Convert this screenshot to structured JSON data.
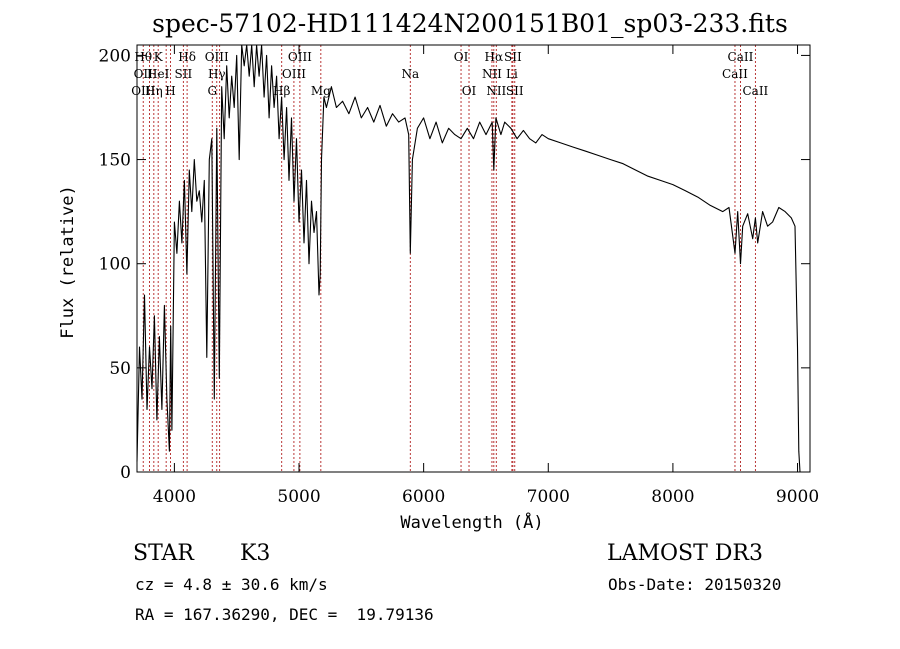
{
  "chart_data": {
    "type": "line",
    "title": "spec-57102-HD111424N200151B01_sp03-233.fits",
    "xlabel": "Wavelength (Å)",
    "ylabel": "Flux (relative)",
    "xlim": [
      3700,
      9100
    ],
    "ylim": [
      0,
      205
    ],
    "x_ticks": [
      4000,
      5000,
      6000,
      7000,
      8000,
      9000
    ],
    "y_ticks": [
      0,
      50,
      100,
      150,
      200
    ],
    "grid": false,
    "line_color": "#000000",
    "series": [
      {
        "x": [
          3700,
          3720,
          3740,
          3760,
          3780,
          3800,
          3820,
          3840,
          3860,
          3880,
          3900,
          3920,
          3940,
          3960,
          3970,
          3980,
          4000,
          4020,
          4040,
          4060,
          4080,
          4100,
          4120,
          4140,
          4160,
          4180,
          4200,
          4220,
          4240,
          4260,
          4280,
          4300,
          4320,
          4340,
          4360,
          4380,
          4400,
          4420,
          4440,
          4460,
          4480,
          4500,
          4520,
          4540,
          4560,
          4580,
          4600,
          4620,
          4640,
          4660,
          4680,
          4700,
          4720,
          4740,
          4760,
          4780,
          4800,
          4820,
          4840,
          4860,
          4880,
          4900,
          4920,
          4940,
          4960,
          4980,
          5000,
          5020,
          5040,
          5060,
          5080,
          5100,
          5120,
          5140,
          5160,
          5170,
          5180,
          5200,
          5220,
          5260,
          5300,
          5350,
          5400,
          5450,
          5500,
          5550,
          5600,
          5650,
          5700,
          5750,
          5800,
          5850,
          5880,
          5893,
          5910,
          5950,
          6000,
          6050,
          6100,
          6150,
          6200,
          6250,
          6300,
          6350,
          6400,
          6450,
          6500,
          6550,
          6563,
          6580,
          6620,
          6650,
          6700,
          6750,
          6800,
          6850,
          6900,
          6950,
          7000,
          7100,
          7200,
          7300,
          7400,
          7500,
          7600,
          7700,
          7800,
          7900,
          8000,
          8100,
          8200,
          8300,
          8400,
          8450,
          8498,
          8520,
          8542,
          8560,
          8600,
          8640,
          8662,
          8680,
          8720,
          8760,
          8800,
          8850,
          8900,
          8950,
          8980,
          9000,
          9010,
          9020
        ],
        "y": [
          5,
          60,
          35,
          85,
          30,
          60,
          40,
          75,
          25,
          65,
          30,
          80,
          35,
          10,
          70,
          20,
          120,
          105,
          130,
          110,
          140,
          95,
          145,
          125,
          150,
          130,
          135,
          120,
          140,
          55,
          150,
          160,
          35,
          165,
          45,
          185,
          160,
          195,
          170,
          190,
          175,
          200,
          150,
          205,
          195,
          210,
          190,
          205,
          185,
          210,
          190,
          205,
          180,
          200,
          170,
          195,
          175,
          190,
          160,
          180,
          150,
          175,
          140,
          170,
          130,
          160,
          120,
          145,
          110,
          140,
          100,
          130,
          115,
          125,
          85,
          95,
          150,
          180,
          175,
          185,
          175,
          178,
          172,
          180,
          170,
          175,
          168,
          176,
          166,
          172,
          168,
          170,
          162,
          105,
          150,
          165,
          170,
          160,
          168,
          158,
          165,
          162,
          160,
          165,
          160,
          168,
          162,
          168,
          145,
          170,
          162,
          168,
          165,
          160,
          164,
          160,
          158,
          162,
          160,
          158,
          156,
          154,
          152,
          150,
          148,
          145,
          142,
          140,
          138,
          135,
          132,
          128,
          125,
          127,
          105,
          125,
          100,
          118,
          124,
          112,
          122,
          110,
          125,
          118,
          120,
          127,
          125,
          122,
          118,
          60,
          10,
          0
        ]
      }
    ],
    "line_labels": [
      {
        "wavelength": 3750,
        "color": "#b22222",
        "labels": [
          {
            "text": "Hθ",
            "row": 1
          },
          {
            "text": "OII",
            "row": 2
          },
          {
            "text": "OIII",
            "row": 3
          }
        ]
      },
      {
        "wavelength": 3800,
        "color": "#b22222",
        "labels": []
      },
      {
        "wavelength": 3835,
        "color": "#b22222",
        "labels": [
          {
            "text": "Hη",
            "row": 3
          }
        ]
      },
      {
        "wavelength": 3870,
        "color": "#b22222",
        "labels": [
          {
            "text": "K",
            "row": 1
          },
          {
            "text": "HeI",
            "row": 2
          }
        ]
      },
      {
        "wavelength": 3934,
        "color": "#b22222",
        "labels": []
      },
      {
        "wavelength": 3969,
        "color": "#b22222",
        "labels": [
          {
            "text": "H",
            "row": 3
          }
        ]
      },
      {
        "wavelength": 4072,
        "color": "#b22222",
        "labels": [
          {
            "text": "SII",
            "row": 2
          }
        ]
      },
      {
        "wavelength": 4102,
        "color": "#b22222",
        "labels": [
          {
            "text": "Hδ",
            "row": 1
          }
        ]
      },
      {
        "wavelength": 4304,
        "color": "#b22222",
        "labels": [
          {
            "text": "G",
            "row": 3
          }
        ]
      },
      {
        "wavelength": 4340,
        "color": "#b22222",
        "labels": [
          {
            "text": "OIII",
            "row": 1
          },
          {
            "text": "Hγ",
            "row": 2
          }
        ]
      },
      {
        "wavelength": 4363,
        "color": "#b22222",
        "labels": []
      },
      {
        "wavelength": 4861,
        "color": "#b22222",
        "labels": [
          {
            "text": "Hβ",
            "row": 3
          }
        ]
      },
      {
        "wavelength": 4959,
        "color": "#b22222",
        "labels": [
          {
            "text": "OIII",
            "row": 2
          }
        ]
      },
      {
        "wavelength": 5007,
        "color": "#b22222",
        "labels": [
          {
            "text": "OIII",
            "row": 1
          }
        ]
      },
      {
        "wavelength": 5175,
        "color": "#b22222",
        "labels": [
          {
            "text": "Mg",
            "row": 3
          }
        ]
      },
      {
        "wavelength": 5893,
        "color": "#b22222",
        "labels": [
          {
            "text": "Na",
            "row": 2
          }
        ]
      },
      {
        "wavelength": 6300,
        "color": "#b22222",
        "labels": [
          {
            "text": "OI",
            "row": 1
          }
        ]
      },
      {
        "wavelength": 6364,
        "color": "#b22222",
        "labels": [
          {
            "text": "OI",
            "row": 3
          }
        ]
      },
      {
        "wavelength": 6548,
        "color": "#b22222",
        "labels": [
          {
            "text": "NII",
            "row": 2
          }
        ]
      },
      {
        "wavelength": 6563,
        "color": "#b22222",
        "labels": [
          {
            "text": "Hα",
            "row": 1
          }
        ]
      },
      {
        "wavelength": 6583,
        "color": "#b22222",
        "labels": [
          {
            "text": "NII",
            "row": 3
          }
        ]
      },
      {
        "wavelength": 6708,
        "color": "#b22222",
        "labels": [
          {
            "text": "Li",
            "row": 2
          }
        ]
      },
      {
        "wavelength": 6716,
        "color": "#b22222",
        "labels": [
          {
            "text": "SII",
            "row": 1
          }
        ]
      },
      {
        "wavelength": 6731,
        "color": "#b22222",
        "labels": [
          {
            "text": "SII",
            "row": 3
          }
        ]
      },
      {
        "wavelength": 8498,
        "color": "#b22222",
        "labels": [
          {
            "text": "CaII",
            "row": 2
          }
        ]
      },
      {
        "wavelength": 8542,
        "color": "#b22222",
        "labels": [
          {
            "text": "CaII",
            "row": 1
          }
        ]
      },
      {
        "wavelength": 8662,
        "color": "#b22222",
        "labels": [
          {
            "text": "CaII",
            "row": 3
          }
        ]
      }
    ]
  },
  "info": {
    "object_class": "STAR",
    "subclass": "K3",
    "survey": "LAMOST DR3",
    "redshift_line": "cz = 4.8 ± 30.6 km/s",
    "obs_date_line": "Obs-Date: 20150320",
    "coord_line": "RA = 167.36290, DEC =  19.79136"
  }
}
